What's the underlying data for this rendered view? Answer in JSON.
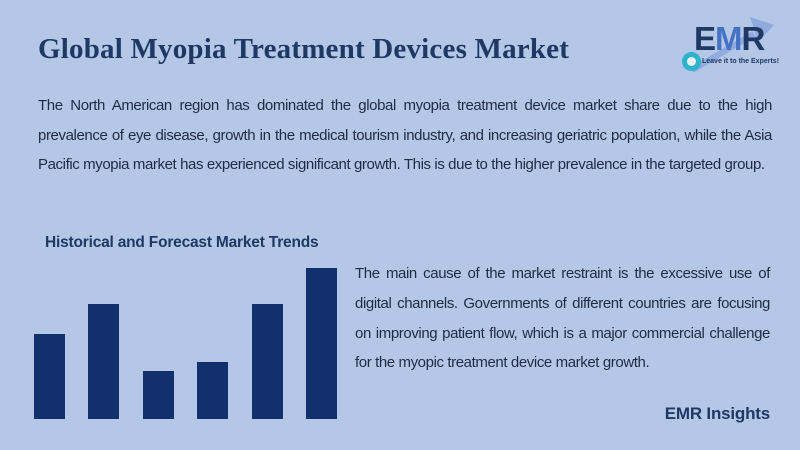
{
  "page": {
    "background_color": "#b4c7e7",
    "heading_color": "#1f3864",
    "body_text_color": "#1e2b45"
  },
  "header": {
    "title": "Global Myopia Treatment Devices Market"
  },
  "logo": {
    "letters": [
      {
        "char": "E",
        "color": "#1f3864"
      },
      {
        "char": "M",
        "color": "#4472c4"
      },
      {
        "char": "R",
        "color": "#1f3864"
      }
    ],
    "tagline": "Leave it to the Experts!",
    "arrow_color": "#8faadc",
    "ring_color": "#2eb3cc"
  },
  "intro_paragraph": "The North American region has dominated the global myopia treatment device market share due to the high prevalence of eye disease, growth in the medical tourism industry, and increasing geriatric population, while the Asia Pacific myopia market has experienced significant growth. This is due to the higher prevalence in the targeted group.",
  "section": {
    "heading": "Historical and Forecast Market Trends"
  },
  "chart_data": {
    "type": "bar",
    "title": "Historical and Forecast Market Trends",
    "categories": [
      "bar-1",
      "bar-2",
      "bar-3",
      "bar-4",
      "bar-5",
      "bar-6"
    ],
    "values": [
      56,
      76,
      32,
      38,
      76,
      100
    ],
    "value_note": "decorative trend chart; no axes, ticks or data labels shown — values are relative bar heights in % of tallest bar",
    "bar_color": "#12306b",
    "xlabel": "",
    "ylabel": "",
    "grid": false,
    "legend": false
  },
  "restraint_paragraph": "The main cause of the market restraint is the excessive use of digital channels. Governments of different countries are focusing on improving patient flow, which is a major commercial challenge for the myopic treatment device market growth.",
  "footer": {
    "insights_label": "EMR Insights"
  }
}
